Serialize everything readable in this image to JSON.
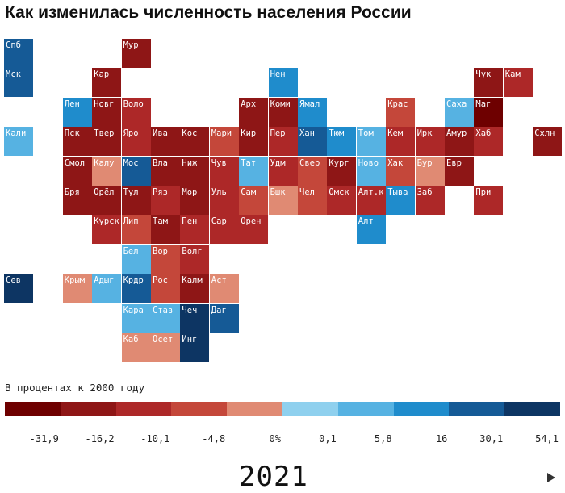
{
  "title": "Как изменилась численность населения России",
  "legend": {
    "label": "В процентах к 2000 году",
    "ticks": [
      "-31,9",
      "-16,2",
      "-10,1",
      "-4,8",
      "0%",
      "0,1",
      "5,8",
      "16",
      "30,1",
      "54,1"
    ],
    "colors": [
      "#6e0000",
      "#8e1616",
      "#ad2828",
      "#c4473a",
      "#e08a73",
      "#8fd0ee",
      "#56b2e2",
      "#1f8ccc",
      "#155a96",
      "#0d3563"
    ]
  },
  "year": "2021",
  "play_icon": "play-icon",
  "chart_data": {
    "type": "heatmap",
    "title": "Как изменилась численность населения России",
    "legend_title": "В процентах к 2000 году",
    "value_bins": [
      "-31,9",
      "-16,2",
      "-10,1",
      "-4,8",
      "0%",
      "0,1",
      "5,8",
      "16",
      "30,1",
      "54,1"
    ],
    "year": "2021",
    "cells": [
      {
        "label": "Спб",
        "row": 0,
        "col": 0,
        "bin": 8
      },
      {
        "label": "Мур",
        "row": 0,
        "col": 4,
        "bin": 1
      },
      {
        "label": "Мск",
        "row": 1,
        "col": 0,
        "bin": 8
      },
      {
        "label": "Кар",
        "row": 1,
        "col": 3,
        "bin": 1
      },
      {
        "label": "Нен",
        "row": 1,
        "col": 9,
        "bin": 7
      },
      {
        "label": "Чук",
        "row": 1,
        "col": 16,
        "bin": 1
      },
      {
        "label": "Кам",
        "row": 1,
        "col": 17,
        "bin": 2
      },
      {
        "label": "Лен",
        "row": 2,
        "col": 2,
        "bin": 7
      },
      {
        "label": "Новг",
        "row": 2,
        "col": 3,
        "bin": 1
      },
      {
        "label": "Воло",
        "row": 2,
        "col": 4,
        "bin": 2
      },
      {
        "label": "Арх",
        "row": 2,
        "col": 8,
        "bin": 1
      },
      {
        "label": "Коми",
        "row": 2,
        "col": 9,
        "bin": 1
      },
      {
        "label": "Ямал",
        "row": 2,
        "col": 10,
        "bin": 7
      },
      {
        "label": "Крас",
        "row": 2,
        "col": 13,
        "bin": 3
      },
      {
        "label": "Саха",
        "row": 2,
        "col": 15,
        "bin": 6
      },
      {
        "label": "Маг",
        "row": 2,
        "col": 16,
        "bin": 0
      },
      {
        "label": "Кали",
        "row": 3,
        "col": 0,
        "bin": 6
      },
      {
        "label": "Пск",
        "row": 3,
        "col": 2,
        "bin": 1
      },
      {
        "label": "Твер",
        "row": 3,
        "col": 3,
        "bin": 1
      },
      {
        "label": "Яро",
        "row": 3,
        "col": 4,
        "bin": 2
      },
      {
        "label": "Ива",
        "row": 3,
        "col": 5,
        "bin": 1
      },
      {
        "label": "Кос",
        "row": 3,
        "col": 6,
        "bin": 1
      },
      {
        "label": "Мари",
        "row": 3,
        "col": 7,
        "bin": 3
      },
      {
        "label": "Кир",
        "row": 3,
        "col": 8,
        "bin": 1
      },
      {
        "label": "Пер",
        "row": 3,
        "col": 9,
        "bin": 2
      },
      {
        "label": "Хан",
        "row": 3,
        "col": 10,
        "bin": 8
      },
      {
        "label": "Тюм",
        "row": 3,
        "col": 11,
        "bin": 7
      },
      {
        "label": "Том",
        "row": 3,
        "col": 12,
        "bin": 6
      },
      {
        "label": "Кем",
        "row": 3,
        "col": 13,
        "bin": 2
      },
      {
        "label": "Ирк",
        "row": 3,
        "col": 14,
        "bin": 2
      },
      {
        "label": "Амур",
        "row": 3,
        "col": 15,
        "bin": 1
      },
      {
        "label": "Хаб",
        "row": 3,
        "col": 16,
        "bin": 2
      },
      {
        "label": "Схлн",
        "row": 3,
        "col": 18,
        "bin": 1
      },
      {
        "label": "Смол",
        "row": 4,
        "col": 2,
        "bin": 1
      },
      {
        "label": "Калу",
        "row": 4,
        "col": 3,
        "bin": 4
      },
      {
        "label": "Мос",
        "row": 4,
        "col": 4,
        "bin": 8
      },
      {
        "label": "Вла",
        "row": 4,
        "col": 5,
        "bin": 1
      },
      {
        "label": "Ниж",
        "row": 4,
        "col": 6,
        "bin": 1
      },
      {
        "label": "Чув",
        "row": 4,
        "col": 7,
        "bin": 2
      },
      {
        "label": "Тат",
        "row": 4,
        "col": 8,
        "bin": 6
      },
      {
        "label": "Удм",
        "row": 4,
        "col": 9,
        "bin": 2
      },
      {
        "label": "Свер",
        "row": 4,
        "col": 10,
        "bin": 3
      },
      {
        "label": "Кург",
        "row": 4,
        "col": 11,
        "bin": 1
      },
      {
        "label": "Ново",
        "row": 4,
        "col": 12,
        "bin": 6
      },
      {
        "label": "Хак",
        "row": 4,
        "col": 13,
        "bin": 3
      },
      {
        "label": "Бур",
        "row": 4,
        "col": 14,
        "bin": 4
      },
      {
        "label": "Евр",
        "row": 4,
        "col": 15,
        "bin": 1
      },
      {
        "label": "Бря",
        "row": 5,
        "col": 2,
        "bin": 1
      },
      {
        "label": "Орёл",
        "row": 5,
        "col": 3,
        "bin": 1
      },
      {
        "label": "Тул",
        "row": 5,
        "col": 4,
        "bin": 1
      },
      {
        "label": "Ряз",
        "row": 5,
        "col": 5,
        "bin": 2
      },
      {
        "label": "Мор",
        "row": 5,
        "col": 6,
        "bin": 1
      },
      {
        "label": "Уль",
        "row": 5,
        "col": 7,
        "bin": 2
      },
      {
        "label": "Сам",
        "row": 5,
        "col": 8,
        "bin": 3
      },
      {
        "label": "Бшк",
        "row": 5,
        "col": 9,
        "bin": 4
      },
      {
        "label": "Чел",
        "row": 5,
        "col": 10,
        "bin": 3
      },
      {
        "label": "Омск",
        "row": 5,
        "col": 11,
        "bin": 2
      },
      {
        "label": "Алт.к",
        "row": 5,
        "col": 12,
        "bin": 2
      },
      {
        "label": "Тыва",
        "row": 5,
        "col": 13,
        "bin": 7
      },
      {
        "label": "Заб",
        "row": 5,
        "col": 14,
        "bin": 2
      },
      {
        "label": "При",
        "row": 5,
        "col": 16,
        "bin": 2
      },
      {
        "label": "Курск",
        "row": 6,
        "col": 3,
        "bin": 2
      },
      {
        "label": "Лип",
        "row": 6,
        "col": 4,
        "bin": 3
      },
      {
        "label": "Там",
        "row": 6,
        "col": 5,
        "bin": 1
      },
      {
        "label": "Пен",
        "row": 6,
        "col": 6,
        "bin": 2
      },
      {
        "label": "Сар",
        "row": 6,
        "col": 7,
        "bin": 2
      },
      {
        "label": "Орен",
        "row": 6,
        "col": 8,
        "bin": 2
      },
      {
        "label": "Алт",
        "row": 6,
        "col": 12,
        "bin": 7
      },
      {
        "label": "Бел",
        "row": 7,
        "col": 4,
        "bin": 6
      },
      {
        "label": "Вор",
        "row": 7,
        "col": 5,
        "bin": 3
      },
      {
        "label": "Волг",
        "row": 7,
        "col": 6,
        "bin": 2
      },
      {
        "label": "Сев",
        "row": 8,
        "col": 0,
        "bin": 9
      },
      {
        "label": "Крым",
        "row": 8,
        "col": 2,
        "bin": 4
      },
      {
        "label": "Адыг",
        "row": 8,
        "col": 3,
        "bin": 6
      },
      {
        "label": "Крдр",
        "row": 8,
        "col": 4,
        "bin": 8
      },
      {
        "label": "Рос",
        "row": 8,
        "col": 5,
        "bin": 3
      },
      {
        "label": "Калм",
        "row": 8,
        "col": 6,
        "bin": 1
      },
      {
        "label": "Аст",
        "row": 8,
        "col": 7,
        "bin": 4
      },
      {
        "label": "Кара",
        "row": 9,
        "col": 4,
        "bin": 6
      },
      {
        "label": "Став",
        "row": 9,
        "col": 5,
        "bin": 6
      },
      {
        "label": "Чеч",
        "row": 9,
        "col": 6,
        "bin": 9
      },
      {
        "label": "Даг",
        "row": 9,
        "col": 7,
        "bin": 8
      },
      {
        "label": "Каб",
        "row": 10,
        "col": 4,
        "bin": 4
      },
      {
        "label": "Осет",
        "row": 10,
        "col": 5,
        "bin": 4
      },
      {
        "label": "Инг",
        "row": 10,
        "col": 6,
        "bin": 9
      }
    ]
  }
}
